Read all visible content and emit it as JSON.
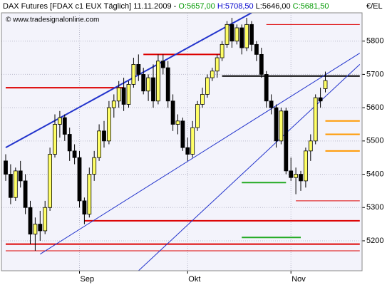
{
  "chart_data": {
    "type": "candlestick",
    "title": "DAX Futures [FDAX c1 EUX  Täglich] 11.11.2009 -",
    "title_parts": [
      {
        "text": "O:5657,00",
        "color": "#009900"
      },
      {
        "text": "H:5708,50",
        "color": "#0000cc"
      },
      {
        "text": "L:5646,00",
        "color": "#000000"
      },
      {
        "text": "C:5681,50",
        "color": "#009900"
      }
    ],
    "watermark": "© www.tradesignalonline.com",
    "y_axis_label": "€/EL",
    "categories": [
      null,
      null,
      null,
      null,
      null,
      null,
      null,
      null,
      null,
      null,
      null,
      null,
      null,
      null,
      null,
      "Sep",
      null,
      null,
      null,
      null,
      null,
      null,
      null,
      null,
      null,
      null,
      null,
      null,
      null,
      null,
      null,
      null,
      null,
      null,
      null,
      null,
      null,
      "Okt",
      null,
      null,
      null,
      null,
      null,
      null,
      null,
      null,
      null,
      null,
      null,
      null,
      null,
      null,
      null,
      null,
      null,
      null,
      null,
      null,
      "Nov",
      null,
      null,
      null,
      null,
      null,
      null,
      null
    ],
    "open": [
      5440,
      5400,
      5330,
      5410,
      5380,
      5300,
      5220,
      5250,
      5230,
      5300,
      5460,
      5550,
      5570,
      5520,
      5470,
      5450,
      5320,
      5280,
      5400,
      5450,
      5530,
      5500,
      5600,
      5620,
      5660,
      5610,
      5670,
      5730,
      5700,
      5650,
      5690,
      5620,
      5740,
      5720,
      5620,
      5550,
      5560,
      5480,
      5460,
      5540,
      5610,
      5640,
      5690,
      5710,
      5750,
      5790,
      5850,
      5800,
      5840,
      5780,
      5850,
      5790,
      5760,
      5700,
      5620,
      5600,
      5500,
      5590,
      5410,
      5390,
      5400,
      5380,
      5470,
      5500,
      5630,
      5657
    ],
    "high": [
      5460,
      5430,
      5420,
      5440,
      5400,
      5320,
      5270,
      5290,
      5320,
      5480,
      5580,
      5590,
      5580,
      5540,
      5490,
      5470,
      5330,
      5420,
      5470,
      5550,
      5560,
      5620,
      5640,
      5680,
      5690,
      5680,
      5750,
      5760,
      5720,
      5700,
      5730,
      5760,
      5760,
      5740,
      5640,
      5580,
      5570,
      5510,
      5560,
      5620,
      5660,
      5700,
      5720,
      5760,
      5800,
      5860,
      5870,
      5850,
      5850,
      5870,
      5860,
      5800,
      5780,
      5710,
      5640,
      5610,
      5600,
      5600,
      5450,
      5420,
      5410,
      5480,
      5520,
      5640,
      5660,
      5708.5
    ],
    "low": [
      5380,
      5310,
      5320,
      5360,
      5280,
      5190,
      5170,
      5200,
      5220,
      5290,
      5450,
      5510,
      5500,
      5440,
      5430,
      5300,
      5250,
      5270,
      5380,
      5440,
      5480,
      5490,
      5570,
      5600,
      5590,
      5600,
      5660,
      5680,
      5640,
      5620,
      5600,
      5610,
      5700,
      5600,
      5530,
      5520,
      5470,
      5440,
      5450,
      5530,
      5600,
      5630,
      5680,
      5690,
      5740,
      5780,
      5780,
      5790,
      5760,
      5770,
      5770,
      5740,
      5690,
      5600,
      5580,
      5480,
      5490,
      5400,
      5380,
      5340,
      5350,
      5360,
      5440,
      5490,
      5600,
      5646
    ],
    "close": [
      5400,
      5330,
      5410,
      5380,
      5300,
      5220,
      5250,
      5230,
      5300,
      5460,
      5550,
      5570,
      5520,
      5470,
      5450,
      5320,
      5280,
      5400,
      5450,
      5530,
      5500,
      5600,
      5620,
      5660,
      5610,
      5670,
      5730,
      5700,
      5650,
      5690,
      5620,
      5740,
      5720,
      5620,
      5550,
      5560,
      5480,
      5460,
      5540,
      5610,
      5640,
      5690,
      5710,
      5750,
      5790,
      5850,
      5800,
      5840,
      5780,
      5850,
      5790,
      5760,
      5700,
      5620,
      5600,
      5500,
      5590,
      5410,
      5390,
      5400,
      5380,
      5470,
      5500,
      5630,
      5620,
      5681.5
    ],
    "up_color": "#ffff66",
    "down_color": "#000000",
    "ylim": [
      5110,
      5885
    ],
    "yticks": [
      5200,
      5300,
      5400,
      5500,
      5600,
      5700,
      5800
    ],
    "grid": true,
    "levels": [
      {
        "value": 5660,
        "color": "#dd0000",
        "from": 0,
        "to": 24,
        "width": 2
      },
      {
        "value": 5760,
        "color": "#dd0000",
        "from": 28,
        "to": 44,
        "width": 2
      },
      {
        "value": 5695,
        "color": "#000000",
        "from": 44,
        "to": 72,
        "width": 2
      },
      {
        "value": 5850,
        "color": "#dd0000",
        "from": 53,
        "to": 72,
        "width": 1
      },
      {
        "value": 5260,
        "color": "#dd0000",
        "from": 16,
        "to": 72,
        "width": 2
      },
      {
        "value": 5190,
        "color": "#dd0000",
        "from": 0,
        "to": 72,
        "width": 2
      },
      {
        "value": 5170,
        "color": "#dd0000",
        "from": 0,
        "to": 72,
        "width": 1
      },
      {
        "value": 5320,
        "color": "#dd0000",
        "from": 59,
        "to": 72,
        "width": 1
      },
      {
        "value": 5560,
        "color": "#ff9900",
        "from": 65,
        "to": 72,
        "width": 2
      },
      {
        "value": 5520,
        "color": "#ff9900",
        "from": 65,
        "to": 72,
        "width": 2
      },
      {
        "value": 5470,
        "color": "#ff9900",
        "from": 65,
        "to": 72,
        "width": 2
      },
      {
        "value": 5375,
        "color": "#22aa22",
        "from": 48,
        "to": 57,
        "width": 2
      },
      {
        "value": 5210,
        "color": "#22aa22",
        "from": 48,
        "to": 60,
        "width": 2
      }
    ],
    "trendlines": [
      {
        "points": [
          [
            0,
            5480
          ],
          [
            50,
            5885
          ]
        ],
        "color": "#2233cc",
        "width": 2
      },
      {
        "points": [
          [
            7,
            5160
          ],
          [
            72,
            5764
          ]
        ],
        "color": "#2233cc",
        "width": 1
      },
      {
        "points": [
          [
            27,
            5110
          ],
          [
            72,
            5730
          ]
        ],
        "color": "#2233cc",
        "width": 1
      }
    ]
  }
}
